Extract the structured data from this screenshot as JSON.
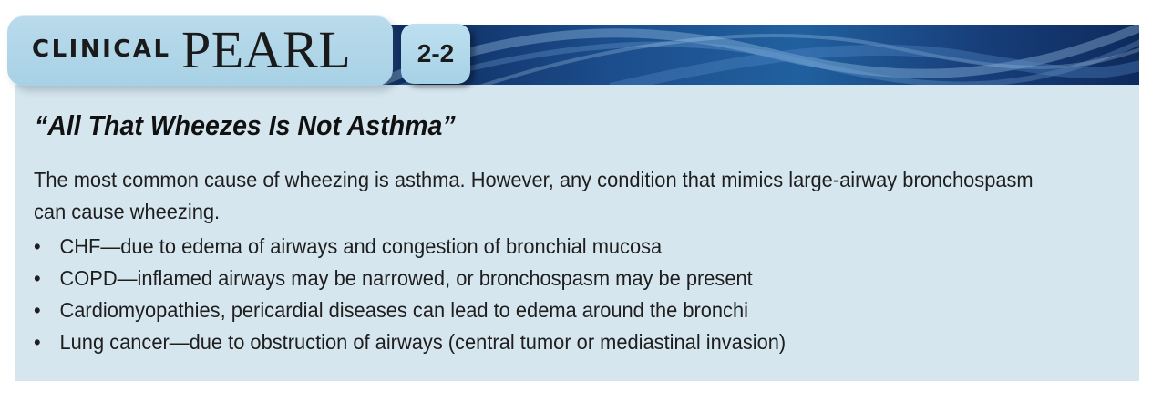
{
  "header": {
    "label_small": "CLINICAL",
    "label_large": "PEARL",
    "number": "2-2"
  },
  "content": {
    "title": "“All That Wheezes Is Not Asthma”",
    "intro": "The most common cause of wheezing is asthma. However, any condition that mimics large-airway bronchospasm can cause wheezing.",
    "bullet_symbol": "•",
    "bullets": [
      "CHF—due to edema of airways and congestion of bronchial mucosa",
      "COPD—inflamed airways may be narrowed, or bronchospasm may be present",
      "Cardiomyopathies, pericardial diseases can lead to edema around the bronchi",
      "Lung cancer—due to obstruction of airways (central tumor or mediastinal invasion)"
    ]
  },
  "colors": {
    "box_background": "#d6e6ef",
    "tab_background": "#b9dbeb",
    "banner_dark": "#0d2a5c",
    "banner_light": "#21609f"
  }
}
